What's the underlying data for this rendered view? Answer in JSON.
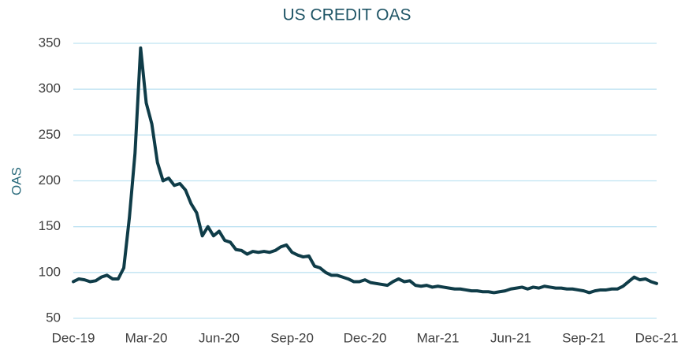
{
  "chart_data": {
    "type": "line",
    "title": "US CREDIT OAS",
    "ylabel": "OAS",
    "categories": [
      "Dec-19",
      null,
      null,
      null,
      null,
      null,
      null,
      null,
      null,
      null,
      null,
      null,
      null,
      "Mar-20",
      null,
      null,
      null,
      null,
      null,
      null,
      null,
      null,
      null,
      null,
      null,
      null,
      "Jun-20",
      null,
      null,
      null,
      null,
      null,
      null,
      null,
      null,
      null,
      null,
      null,
      null,
      "Sep-20",
      null,
      null,
      null,
      null,
      null,
      null,
      null,
      null,
      null,
      null,
      null,
      null,
      "Dec-20",
      null,
      null,
      null,
      null,
      null,
      null,
      null,
      null,
      null,
      null,
      null,
      null,
      "Mar-21",
      null,
      null,
      null,
      null,
      null,
      null,
      null,
      null,
      null,
      null,
      null,
      null,
      "Jun-21",
      null,
      null,
      null,
      null,
      null,
      null,
      null,
      null,
      null,
      null,
      null,
      null,
      "Sep-21",
      null,
      null,
      null,
      null,
      null,
      null,
      null,
      null,
      null,
      null,
      null,
      null,
      "Dec-21"
    ],
    "series": [
      {
        "name": "OAS",
        "color": "#0f3c48",
        "values": [
          90,
          93,
          92,
          90,
          91,
          95,
          97,
          93,
          93,
          105,
          160,
          230,
          345,
          285,
          262,
          220,
          200,
          203,
          195,
          197,
          190,
          175,
          165,
          140,
          150,
          140,
          145,
          135,
          133,
          125,
          124,
          120,
          123,
          122,
          123,
          122,
          124,
          128,
          130,
          122,
          119,
          117,
          118,
          107,
          105,
          100,
          97,
          97,
          95,
          93,
          90,
          90,
          92,
          89,
          88,
          87,
          86,
          90,
          93,
          90,
          91,
          86,
          85,
          86,
          84,
          85,
          84,
          83,
          82,
          82,
          81,
          80,
          80,
          79,
          79,
          78,
          79,
          80,
          82,
          83,
          84,
          82,
          84,
          83,
          85,
          84,
          83,
          83,
          82,
          82,
          81,
          80,
          78,
          80,
          81,
          81,
          82,
          82,
          85,
          90,
          95,
          92,
          93,
          90,
          88
        ]
      }
    ],
    "ylim": [
      50,
      350
    ],
    "yticks": [
      50,
      100,
      150,
      200,
      250,
      300,
      350
    ],
    "grid": true
  }
}
